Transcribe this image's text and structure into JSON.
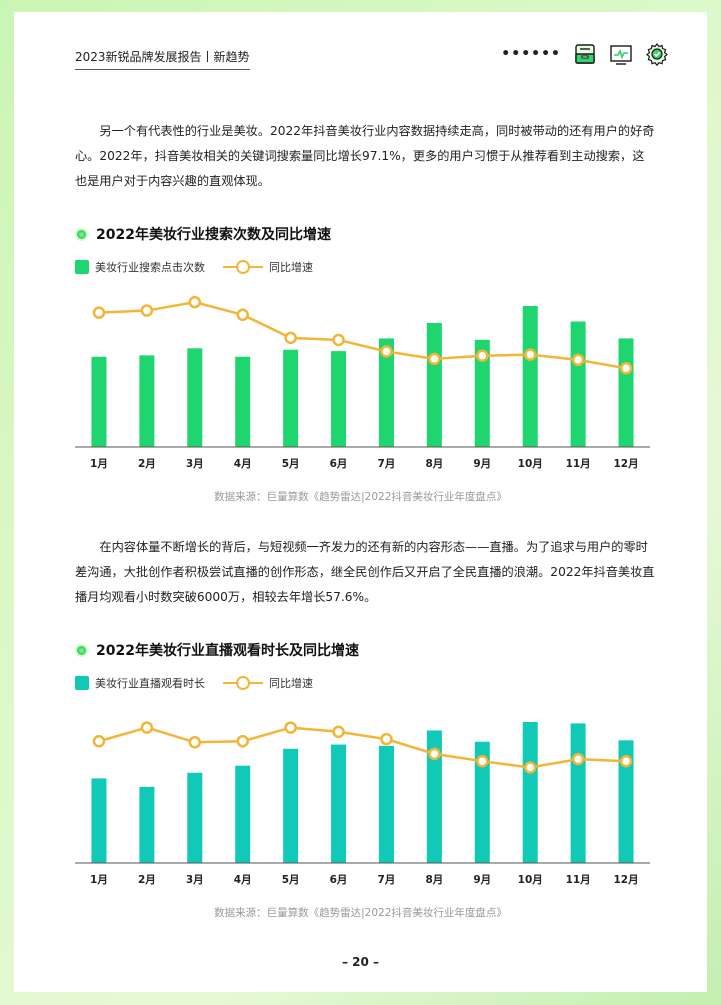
{
  "header": {
    "title": "2023新锐品牌发展报告丨新趋势",
    "dots": "••••••",
    "icons": [
      "inbox-icon",
      "chart-monitor-icon",
      "gear-check-icon"
    ]
  },
  "paragraphs": [
    "另一个有代表性的行业是美妆。2022年抖音美妆行业内容数据持续走高，同时被带动的还有用户的好奇心。2022年，抖音美妆相关的关键词搜索量同比增长97.1%，更多的用户习惯于从推荐看到主动搜索，这也是用户对于内容兴趣的直观体现。",
    "在内容体量不断增长的背后，与短视频一齐发力的还有新的内容形态——直播。为了追求与用户的零时差沟通，大批创作者积极尝试直播的创作形态，继全民创作后又开启了全民直播的浪潮。2022年抖音美妆直播月均观看小时数突破6000万，相较去年增长57.6%。"
  ],
  "charts": [
    {
      "title": "2022年美妆行业搜索次数及同比增速",
      "legend_bar": "美妆行业搜索点击次数",
      "legend_line": "同比增速",
      "source": "数据来源：巨量算数《趋势雷达|2022抖音美妆行业年度盘点》",
      "bar_color": "#1ed56f",
      "line_color": "#f3b536"
    },
    {
      "title": "2022年美妆行业直播观看时长及同比增速",
      "legend_bar": "美妆行业直播观看时长",
      "legend_line": "同比增速",
      "source": "数据来源：巨量算数《趋势雷达|2022抖音美妆行业年度盘点》",
      "bar_color": "#10c9b6",
      "line_color": "#f3b536"
    }
  ],
  "chart_data": [
    {
      "type": "bar",
      "title": "2022年美妆行业搜索次数及同比增速",
      "categories": [
        "1月",
        "2月",
        "3月",
        "4月",
        "5月",
        "6月",
        "7月",
        "8月",
        "9月",
        "10月",
        "11月",
        "12月"
      ],
      "series": [
        {
          "name": "美妆行业搜索点击次数",
          "type": "bar",
          "values": [
            64,
            65,
            70,
            64,
            69,
            68,
            77,
            88,
            76,
            100,
            89,
            77
          ]
        },
        {
          "name": "同比增速",
          "type": "line",
          "values": [
            87,
            89,
            97,
            85,
            63,
            61,
            50,
            43,
            46,
            47,
            42,
            34
          ]
        }
      ],
      "ylim": [
        0,
        100
      ]
    },
    {
      "type": "bar",
      "title": "2022年美妆行业直播观看时长及同比增速",
      "categories": [
        "1月",
        "2月",
        "3月",
        "4月",
        "5月",
        "6月",
        "7月",
        "8月",
        "9月",
        "10月",
        "11月",
        "12月"
      ],
      "series": [
        {
          "name": "美妆行业直播观看时长",
          "type": "bar",
          "values": [
            60,
            54,
            64,
            69,
            81,
            84,
            83,
            94,
            86,
            100,
            99,
            87
          ]
        },
        {
          "name": "同比增速",
          "type": "line",
          "values": [
            75,
            88,
            74,
            75,
            88,
            84,
            77,
            63,
            56,
            50,
            58,
            56
          ]
        }
      ],
      "ylim": [
        0,
        100
      ]
    }
  ],
  "page_number": "– 20 –"
}
